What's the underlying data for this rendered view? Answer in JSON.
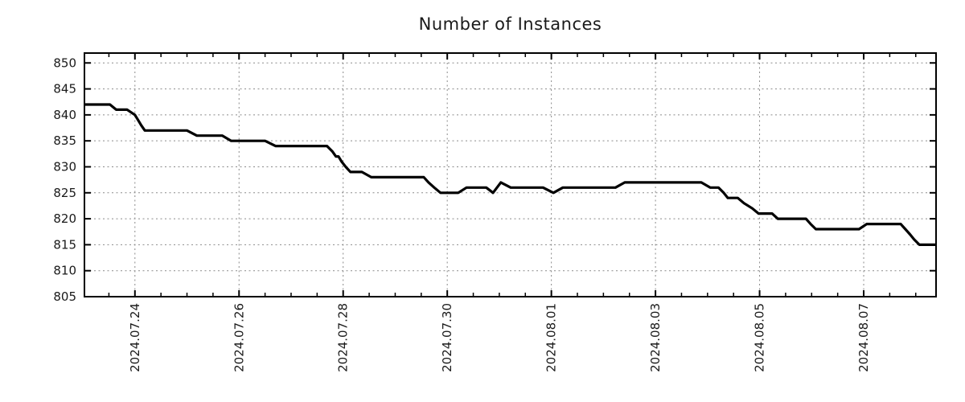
{
  "chart_data": {
    "type": "line",
    "title": "Number of Instances",
    "xlabel": "",
    "ylabel": "",
    "x_unit": "days since 2024-07-23 00:00",
    "xlim": [
      0.03,
      16.39
    ],
    "ylim": [
      805,
      851.9
    ],
    "grid": true,
    "legend": "none",
    "y_ticks": [
      805,
      810,
      815,
      820,
      825,
      830,
      835,
      840,
      845,
      850
    ],
    "x_major_ticks": [
      {
        "pos": 1,
        "label": "2024.07.24"
      },
      {
        "pos": 3,
        "label": "2024.07.26"
      },
      {
        "pos": 5,
        "label": "2024.07.28"
      },
      {
        "pos": 7,
        "label": "2024.07.30"
      },
      {
        "pos": 9,
        "label": "2024.08.01"
      },
      {
        "pos": 11,
        "label": "2024.08.03"
      },
      {
        "pos": 13,
        "label": "2024.08.05"
      },
      {
        "pos": 15,
        "label": "2024.08.07"
      }
    ],
    "x_minor_tick_start": 0.5,
    "x_minor_tick_step": 0.5,
    "x_minor_tick_end": 16.0,
    "line_color": "#000000",
    "grid_color": "#8a8a8a",
    "border_color": "#000000",
    "series": [
      {
        "name": "instances",
        "points": [
          [
            0.03,
            842
          ],
          [
            0.52,
            842
          ],
          [
            0.64,
            841
          ],
          [
            0.85,
            841
          ],
          [
            1.0,
            840
          ],
          [
            1.06,
            839
          ],
          [
            1.12,
            838
          ],
          [
            1.19,
            837
          ],
          [
            2.0,
            837
          ],
          [
            2.19,
            836
          ],
          [
            2.68,
            836
          ],
          [
            2.85,
            835
          ],
          [
            3.5,
            835
          ],
          [
            3.7,
            834
          ],
          [
            4.69,
            834
          ],
          [
            4.79,
            833
          ],
          [
            4.86,
            832
          ],
          [
            4.91,
            832
          ],
          [
            4.97,
            831
          ],
          [
            5.05,
            830
          ],
          [
            5.14,
            829
          ],
          [
            5.36,
            829
          ],
          [
            5.54,
            828
          ],
          [
            6.55,
            828
          ],
          [
            6.64,
            827
          ],
          [
            6.75,
            826
          ],
          [
            6.87,
            825
          ],
          [
            7.21,
            825
          ],
          [
            7.37,
            826
          ],
          [
            7.75,
            826
          ],
          [
            7.88,
            825
          ],
          [
            8.03,
            827
          ],
          [
            8.22,
            826
          ],
          [
            8.84,
            826
          ],
          [
            9.04,
            825
          ],
          [
            9.22,
            826
          ],
          [
            10.23,
            826
          ],
          [
            10.41,
            827
          ],
          [
            11.88,
            827
          ],
          [
            12.05,
            826
          ],
          [
            12.21,
            826
          ],
          [
            12.31,
            825
          ],
          [
            12.39,
            824
          ],
          [
            12.58,
            824
          ],
          [
            12.7,
            823
          ],
          [
            12.86,
            822
          ],
          [
            12.98,
            821
          ],
          [
            13.24,
            821
          ],
          [
            13.35,
            820
          ],
          [
            13.89,
            820
          ],
          [
            13.98,
            819
          ],
          [
            14.08,
            818
          ],
          [
            14.91,
            818
          ],
          [
            15.06,
            819
          ],
          [
            15.71,
            819
          ],
          [
            15.8,
            818
          ],
          [
            15.89,
            817
          ],
          [
            15.97,
            816
          ],
          [
            16.07,
            815
          ],
          [
            16.39,
            815
          ]
        ]
      }
    ]
  }
}
